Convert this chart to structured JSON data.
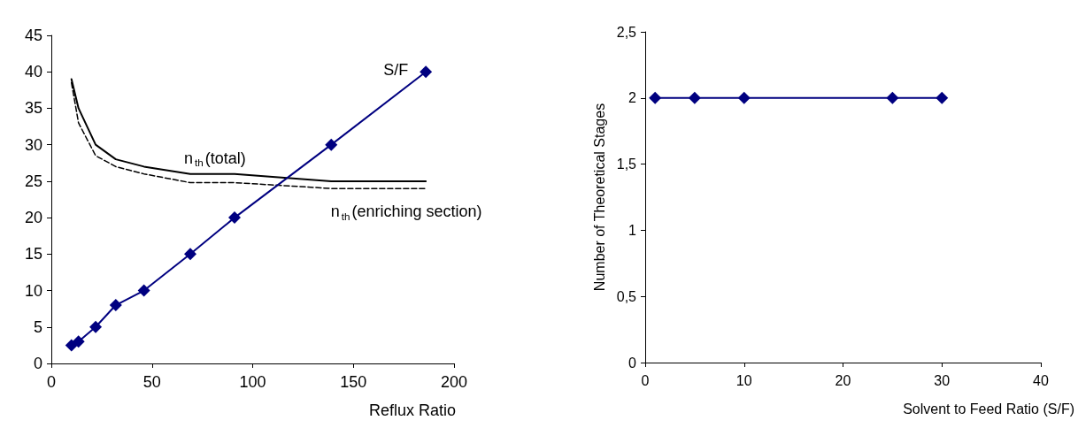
{
  "chart_data": [
    {
      "type": "line",
      "xlabel": "Reflux Ratio",
      "xlim": [
        0,
        200
      ],
      "xticks": [
        0,
        50,
        100,
        150,
        200
      ],
      "ylim": [
        0,
        45
      ],
      "yticks": [
        0,
        5,
        10,
        15,
        20,
        25,
        30,
        35,
        40,
        45
      ],
      "grid": false,
      "legend": false,
      "series": [
        {
          "name": "S/F",
          "color": "#000080",
          "marker": "diamond",
          "line_style": "solid",
          "x": [
            10,
            13.5,
            22,
            32,
            46,
            69,
            91,
            139,
            186
          ],
          "values": [
            2.5,
            3,
            5,
            8,
            10,
            15,
            20,
            30,
            40
          ]
        },
        {
          "name": "n$_{th}$(total)",
          "color": "#000000",
          "marker": "none",
          "line_style": "solid",
          "x": [
            10,
            13.5,
            22,
            32,
            46,
            69,
            91,
            139,
            186
          ],
          "values": [
            39,
            35,
            30,
            28,
            27,
            26,
            26,
            25,
            25
          ]
        },
        {
          "name": "n$_{th}$(enriching section)",
          "color": "#000000",
          "marker": "none",
          "line_style": "dashed",
          "x": [
            10,
            13.5,
            22,
            32,
            46,
            69,
            91,
            139,
            186
          ],
          "values": [
            38.5,
            33,
            28.5,
            27,
            26,
            24.8,
            24.8,
            24,
            24
          ]
        }
      ]
    },
    {
      "type": "line",
      "xlabel": "Solvent to Feed Ratio (S/F)",
      "ylabel": "Number of Theoretical Stages",
      "xlim": [
        0,
        40
      ],
      "xticks": [
        0,
        10,
        20,
        30,
        40
      ],
      "ylim": [
        0,
        2.5
      ],
      "yticks": [
        0,
        {
          "value": 0.5,
          "label": "0,5"
        },
        1,
        {
          "value": 1.5,
          "label": "1,5"
        },
        2,
        {
          "value": 2.5,
          "label": "2,5"
        }
      ],
      "grid": false,
      "legend": false,
      "series": [
        {
          "color": "#000080",
          "marker": "diamond",
          "line_style": "solid",
          "x": [
            1,
            5,
            10,
            25,
            30
          ],
          "values": [
            2,
            2,
            2,
            2,
            2
          ]
        }
      ]
    }
  ]
}
